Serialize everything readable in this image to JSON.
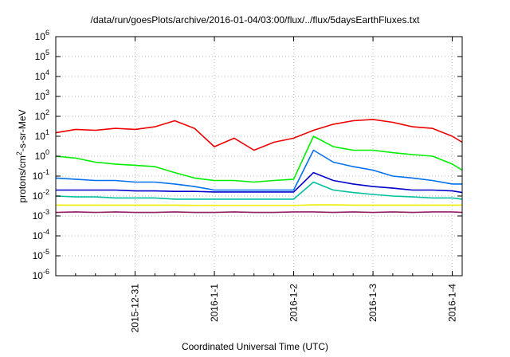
{
  "chart_data": {
    "type": "line",
    "title": "/data/run/goesPlots/archive/2016-01-04/03:00/flux/../flux/5daysEarthFluxes.txt",
    "xlabel": "Coordinated Universal Time (UTC)",
    "ylabel": "protons/cm²-s-sr-MeV",
    "yscale": "log",
    "ylim": [
      1e-06,
      1000000.0
    ],
    "x_start": "2015-12-30 00:00",
    "x_end": "2016-01-04 03:00",
    "xticks": [
      {
        "label": "2015-12-31",
        "t": "2015-12-31T00:00"
      },
      {
        "label": "2016-1-1",
        "t": "2016-01-01T00:00"
      },
      {
        "label": "2016-1-2",
        "t": "2016-01-02T00:00"
      },
      {
        "label": "2016-1-3",
        "t": "2016-01-03T00:00"
      },
      {
        "label": "2016-1-4",
        "t": "2016-01-04T00:00"
      }
    ],
    "yticks": [
      {
        "base": "10",
        "exp": "-6",
        "value": 1e-06
      },
      {
        "base": "10",
        "exp": "-5",
        "value": 1e-05
      },
      {
        "base": "10",
        "exp": "-4",
        "value": 0.0001
      },
      {
        "base": "10",
        "exp": "-3",
        "value": 0.001
      },
      {
        "base": "10",
        "exp": "-2",
        "value": 0.01
      },
      {
        "base": "10",
        "exp": "-1",
        "value": 0.1
      },
      {
        "base": "10",
        "exp": "0",
        "value": 1
      },
      {
        "base": "10",
        "exp": "1",
        "value": 10
      },
      {
        "base": "10",
        "exp": "2",
        "value": 100
      },
      {
        "base": "10",
        "exp": "3",
        "value": 1000
      },
      {
        "base": "10",
        "exp": "4",
        "value": 10000
      },
      {
        "base": "10",
        "exp": "5",
        "value": 100000
      },
      {
        "base": "10",
        "exp": "6",
        "value": 1000000
      }
    ],
    "grid": true,
    "legend": "none",
    "series": [
      {
        "color": "#ee0000",
        "x": [
          "2015-12-30T00:00",
          "2015-12-30T06:00",
          "2015-12-30T12:00",
          "2015-12-30T18:00",
          "2015-12-31T00:00",
          "2015-12-31T06:00",
          "2015-12-31T12:00",
          "2015-12-31T18:00",
          "2016-01-01T00:00",
          "2016-01-01T06:00",
          "2016-01-01T12:00",
          "2016-01-01T18:00",
          "2016-01-02T00:00",
          "2016-01-02T06:00",
          "2016-01-02T12:00",
          "2016-01-02T18:00",
          "2016-01-03T00:00",
          "2016-01-03T06:00",
          "2016-01-03T12:00",
          "2016-01-03T18:00",
          "2016-01-04T00:00",
          "2016-01-04T03:00"
        ],
        "values": [
          15,
          22,
          20,
          25,
          22,
          30,
          60,
          25,
          3,
          8,
          2,
          5,
          8,
          20,
          40,
          60,
          70,
          50,
          30,
          25,
          10,
          5
        ]
      },
      {
        "color": "#00ee00",
        "x": [
          "2015-12-30T00:00",
          "2015-12-30T06:00",
          "2015-12-30T12:00",
          "2015-12-30T18:00",
          "2015-12-31T00:00",
          "2015-12-31T06:00",
          "2015-12-31T12:00",
          "2015-12-31T18:00",
          "2016-01-01T00:00",
          "2016-01-01T06:00",
          "2016-01-01T12:00",
          "2016-01-01T18:00",
          "2016-01-02T00:00",
          "2016-01-02T06:00",
          "2016-01-02T12:00",
          "2016-01-02T18:00",
          "2016-01-03T00:00",
          "2016-01-03T06:00",
          "2016-01-03T12:00",
          "2016-01-03T18:00",
          "2016-01-04T00:00",
          "2016-01-04T03:00"
        ],
        "values": [
          1,
          0.8,
          0.5,
          0.4,
          0.35,
          0.3,
          0.15,
          0.08,
          0.06,
          0.06,
          0.05,
          0.06,
          0.07,
          10,
          3,
          2,
          2,
          1.5,
          1.2,
          1,
          0.4,
          0.2
        ]
      },
      {
        "color": "#0070ee",
        "x": [
          "2015-12-30T00:00",
          "2015-12-30T06:00",
          "2015-12-30T12:00",
          "2015-12-30T18:00",
          "2015-12-31T00:00",
          "2015-12-31T06:00",
          "2015-12-31T12:00",
          "2015-12-31T18:00",
          "2016-01-01T00:00",
          "2016-01-01T06:00",
          "2016-01-01T12:00",
          "2016-01-01T18:00",
          "2016-01-02T00:00",
          "2016-01-02T06:00",
          "2016-01-02T12:00",
          "2016-01-02T18:00",
          "2016-01-03T00:00",
          "2016-01-03T06:00",
          "2016-01-03T12:00",
          "2016-01-03T18:00",
          "2016-01-04T00:00",
          "2016-01-04T03:00"
        ],
        "values": [
          0.08,
          0.07,
          0.06,
          0.06,
          0.05,
          0.05,
          0.04,
          0.03,
          0.02,
          0.02,
          0.02,
          0.02,
          0.02,
          2,
          0.5,
          0.3,
          0.2,
          0.1,
          0.08,
          0.06,
          0.04,
          0.04
        ]
      },
      {
        "color": "#0000cc",
        "x": [
          "2015-12-30T00:00",
          "2015-12-30T06:00",
          "2015-12-30T12:00",
          "2015-12-30T18:00",
          "2015-12-31T00:00",
          "2015-12-31T06:00",
          "2015-12-31T12:00",
          "2015-12-31T18:00",
          "2016-01-01T00:00",
          "2016-01-01T06:00",
          "2016-01-01T12:00",
          "2016-01-01T18:00",
          "2016-01-02T00:00",
          "2016-01-02T06:00",
          "2016-01-02T12:00",
          "2016-01-02T18:00",
          "2016-01-03T00:00",
          "2016-01-03T06:00",
          "2016-01-03T12:00",
          "2016-01-03T18:00",
          "2016-01-04T00:00",
          "2016-01-04T03:00"
        ],
        "values": [
          0.02,
          0.02,
          0.02,
          0.02,
          0.018,
          0.018,
          0.017,
          0.017,
          0.016,
          0.016,
          0.016,
          0.016,
          0.016,
          0.15,
          0.06,
          0.04,
          0.03,
          0.025,
          0.02,
          0.02,
          0.018,
          0.015
        ]
      },
      {
        "color": "#00c0a0",
        "x": [
          "2015-12-30T00:00",
          "2015-12-30T06:00",
          "2015-12-30T12:00",
          "2015-12-30T18:00",
          "2015-12-31T00:00",
          "2015-12-31T06:00",
          "2015-12-31T12:00",
          "2015-12-31T18:00",
          "2016-01-01T00:00",
          "2016-01-01T06:00",
          "2016-01-01T12:00",
          "2016-01-01T18:00",
          "2016-01-02T00:00",
          "2016-01-02T06:00",
          "2016-01-02T12:00",
          "2016-01-02T18:00",
          "2016-01-03T00:00",
          "2016-01-03T06:00",
          "2016-01-03T12:00",
          "2016-01-03T18:00",
          "2016-01-04T00:00",
          "2016-01-04T03:00"
        ],
        "values": [
          0.01,
          0.009,
          0.009,
          0.008,
          0.008,
          0.008,
          0.007,
          0.007,
          0.007,
          0.007,
          0.007,
          0.007,
          0.007,
          0.05,
          0.02,
          0.015,
          0.012,
          0.01,
          0.009,
          0.008,
          0.008,
          0.007
        ]
      },
      {
        "color": "#eeee00",
        "x": [
          "2015-12-30T00:00",
          "2015-12-30T06:00",
          "2015-12-30T12:00",
          "2015-12-30T18:00",
          "2015-12-31T00:00",
          "2015-12-31T06:00",
          "2015-12-31T12:00",
          "2015-12-31T18:00",
          "2016-01-01T00:00",
          "2016-01-01T06:00",
          "2016-01-01T12:00",
          "2016-01-01T18:00",
          "2016-01-02T00:00",
          "2016-01-02T06:00",
          "2016-01-02T12:00",
          "2016-01-02T18:00",
          "2016-01-03T00:00",
          "2016-01-03T06:00",
          "2016-01-03T12:00",
          "2016-01-03T18:00",
          "2016-01-04T00:00",
          "2016-01-04T03:00"
        ],
        "values": [
          0.0035,
          0.0035,
          0.0035,
          0.0035,
          0.0035,
          0.0035,
          0.0035,
          0.0034,
          0.0034,
          0.0034,
          0.0034,
          0.0034,
          0.0034,
          0.0036,
          0.0036,
          0.0035,
          0.0035,
          0.0035,
          0.0035,
          0.0035,
          0.0035,
          0.0035
        ]
      },
      {
        "color": "#902060",
        "x": [
          "2015-12-30T00:00",
          "2015-12-30T06:00",
          "2015-12-30T12:00",
          "2015-12-30T18:00",
          "2015-12-31T00:00",
          "2015-12-31T06:00",
          "2015-12-31T12:00",
          "2015-12-31T18:00",
          "2016-01-01T00:00",
          "2016-01-01T06:00",
          "2016-01-01T12:00",
          "2016-01-01T18:00",
          "2016-01-02T00:00",
          "2016-01-02T06:00",
          "2016-01-02T12:00",
          "2016-01-02T18:00",
          "2016-01-03T00:00",
          "2016-01-03T06:00",
          "2016-01-03T12:00",
          "2016-01-03T18:00",
          "2016-01-04T00:00",
          "2016-01-04T03:00"
        ],
        "values": [
          0.0015,
          0.0016,
          0.0015,
          0.0016,
          0.0015,
          0.0015,
          0.0016,
          0.0015,
          0.0015,
          0.0016,
          0.0015,
          0.0015,
          0.0016,
          0.0016,
          0.0015,
          0.0016,
          0.0015,
          0.0016,
          0.0015,
          0.0016,
          0.0016,
          0.0015
        ]
      }
    ]
  }
}
